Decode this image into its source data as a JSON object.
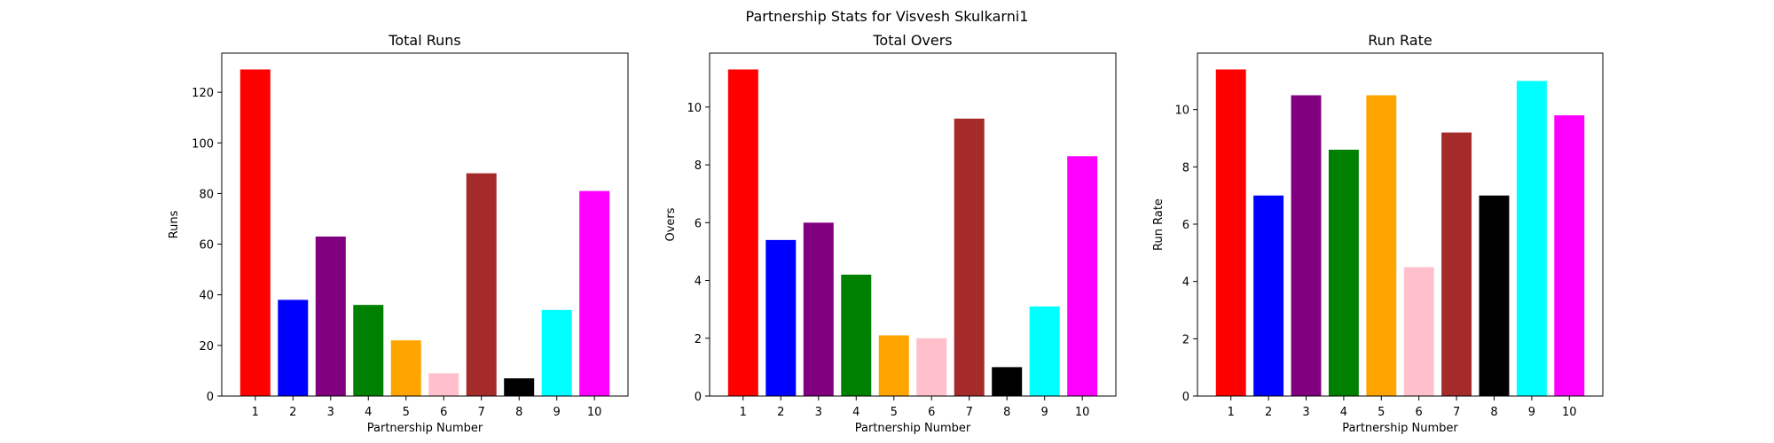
{
  "suptitle": "Partnership Stats for Visvesh Skulkarni1",
  "chart_data": [
    {
      "type": "bar",
      "title": "Total Runs",
      "xlabel": "Partnership Number",
      "ylabel": "Runs",
      "categories": [
        "1",
        "2",
        "3",
        "4",
        "5",
        "6",
        "7",
        "8",
        "9",
        "10"
      ],
      "values": [
        129,
        38,
        63,
        36,
        22,
        9,
        88,
        7,
        34,
        81
      ],
      "colors": [
        "#ff0000",
        "#0000ff",
        "#800080",
        "#008000",
        "#ffa500",
        "#ffc0cb",
        "#a52a2a",
        "#000000",
        "#00ffff",
        "#ff00ff"
      ],
      "ylim": [
        0,
        135.45
      ],
      "yticks": [
        0,
        20,
        40,
        60,
        80,
        100,
        120
      ],
      "grid": false
    },
    {
      "type": "bar",
      "title": "Total Overs",
      "xlabel": "Partnership Number",
      "ylabel": "Overs",
      "categories": [
        "1",
        "2",
        "3",
        "4",
        "5",
        "6",
        "7",
        "8",
        "9",
        "10"
      ],
      "values": [
        11.3,
        5.4,
        6.0,
        4.2,
        2.1,
        2.0,
        9.6,
        1.0,
        3.1,
        8.3
      ],
      "colors": [
        "#ff0000",
        "#0000ff",
        "#800080",
        "#008000",
        "#ffa500",
        "#ffc0cb",
        "#a52a2a",
        "#000000",
        "#00ffff",
        "#ff00ff"
      ],
      "ylim": [
        0,
        11.865
      ],
      "yticks": [
        0,
        2,
        4,
        6,
        8,
        10
      ],
      "grid": false
    },
    {
      "type": "bar",
      "title": "Run Rate",
      "xlabel": "Partnership Number",
      "ylabel": "Run Rate",
      "categories": [
        "1",
        "2",
        "3",
        "4",
        "5",
        "6",
        "7",
        "8",
        "9",
        "10"
      ],
      "values": [
        11.4,
        7.0,
        10.5,
        8.6,
        10.5,
        4.5,
        9.2,
        7.0,
        11.0,
        9.8
      ],
      "colors": [
        "#ff0000",
        "#0000ff",
        "#800080",
        "#008000",
        "#ffa500",
        "#ffc0cb",
        "#a52a2a",
        "#000000",
        "#00ffff",
        "#ff00ff"
      ],
      "ylim": [
        0,
        11.97
      ],
      "yticks": [
        0,
        2,
        4,
        6,
        8,
        10
      ],
      "grid": false
    }
  ]
}
